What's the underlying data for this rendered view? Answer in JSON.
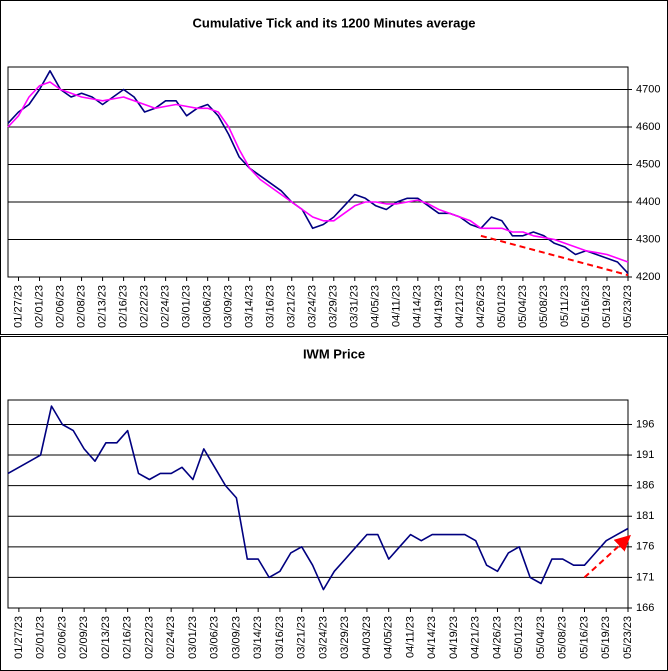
{
  "chart_data": [
    {
      "type": "line",
      "title": "Cumulative Tick and its 1200 Minutes average",
      "categories": [
        null,
        "01/27/23",
        null,
        "02/01/23",
        null,
        "02/06/23",
        null,
        "02/08/23",
        null,
        "02/13/23",
        null,
        "02/16/23",
        null,
        "02/22/23",
        null,
        "02/24/23",
        null,
        "03/01/23",
        null,
        "03/06/23",
        null,
        "03/09/23",
        null,
        "03/14/23",
        null,
        "03/16/23",
        null,
        "03/21/23",
        null,
        "03/24/23",
        null,
        "03/29/23",
        null,
        "03/31/23",
        null,
        "04/05/23",
        null,
        "04/11/23",
        null,
        "04/14/23",
        null,
        "04/19/23",
        null,
        "04/21/23",
        null,
        "04/26/23",
        null,
        "05/01/23",
        null,
        "05/04/23",
        null,
        "05/08/23",
        null,
        "05/11/23",
        null,
        "05/16/23",
        null,
        "05/19/23",
        null,
        "05/23/23"
      ],
      "series": [
        {
          "color": "#000080",
          "values": [
            4610,
            4640,
            4660,
            4700,
            4750,
            4700,
            4680,
            4690,
            4680,
            4660,
            4680,
            4700,
            4680,
            4640,
            4650,
            4670,
            4670,
            4630,
            4650,
            4660,
            4630,
            4580,
            4520,
            4490,
            4470,
            4450,
            4430,
            4400,
            4380,
            4330,
            4340,
            4360,
            4390,
            4420,
            4410,
            4390,
            4380,
            4400,
            4410,
            4410,
            4390,
            4370,
            4370,
            4360,
            4340,
            4330,
            4360,
            4350,
            4310,
            4310,
            4320,
            4310,
            4290,
            4280,
            4260,
            4270,
            4260,
            4250,
            4240,
            4210
          ]
        },
        {
          "color": "#ff00ff",
          "values": [
            4600,
            4630,
            4680,
            4710,
            4720,
            4700,
            4690,
            4680,
            4675,
            4670,
            4675,
            4680,
            4670,
            4660,
            4650,
            4655,
            4660,
            4655,
            4650,
            4650,
            4640,
            4600,
            4540,
            4490,
            4460,
            4440,
            4420,
            4400,
            4380,
            4360,
            4350,
            4350,
            4370,
            4390,
            4400,
            4400,
            4395,
            4395,
            4400,
            4405,
            4395,
            4380,
            4370,
            4360,
            4350,
            4330,
            4330,
            4330,
            4320,
            4320,
            4310,
            4305,
            4300,
            4290,
            4280,
            4270,
            4265,
            4260,
            4250,
            4240
          ]
        },
        {
          "color": "#ff0000",
          "style": "dashed",
          "values": [
            null,
            null,
            null,
            null,
            null,
            null,
            null,
            null,
            null,
            null,
            null,
            null,
            null,
            null,
            null,
            null,
            null,
            null,
            null,
            null,
            null,
            null,
            null,
            null,
            null,
            null,
            null,
            null,
            null,
            null,
            null,
            null,
            null,
            null,
            null,
            null,
            null,
            null,
            null,
            null,
            null,
            null,
            null,
            null,
            null,
            4310,
            null,
            null,
            null,
            null,
            null,
            null,
            null,
            null,
            null,
            null,
            null,
            null,
            null,
            4205
          ]
        }
      ],
      "ylim": [
        4200,
        4760
      ],
      "yticks": [
        4200,
        4300,
        4400,
        4500,
        4600,
        4700
      ],
      "grid": true
    },
    {
      "type": "line",
      "title": "IWM Price",
      "categories": [
        null,
        "01/27/23",
        null,
        "02/01/23",
        null,
        "02/06/23",
        null,
        "02/09/23",
        null,
        "02/13/23",
        null,
        "02/16/23",
        null,
        "02/22/23",
        null,
        "02/24/23",
        null,
        "03/01/23",
        null,
        "03/06/23",
        null,
        "03/09/23",
        null,
        "03/14/23",
        null,
        "03/16/23",
        null,
        "03/21/23",
        null,
        "03/24/23",
        null,
        "03/29/23",
        null,
        "04/03/23",
        null,
        "04/05/23",
        null,
        "04/11/23",
        null,
        "04/14/23",
        null,
        "04/19/23",
        null,
        "04/21/23",
        null,
        "04/26/23",
        null,
        "05/01/23",
        null,
        "05/04/23",
        null,
        "05/08/23",
        null,
        "05/16/23",
        null,
        "05/19/23",
        null,
        "05/23/23"
      ],
      "series": [
        {
          "color": "#000080",
          "values": [
            188,
            189,
            190,
            191,
            199,
            196,
            195,
            192,
            190,
            193,
            193,
            195,
            188,
            187,
            188,
            188,
            189,
            187,
            192,
            189,
            186,
            184,
            174,
            174,
            171,
            172,
            175,
            176,
            173,
            169,
            172,
            174,
            176,
            178,
            178,
            174,
            176,
            178,
            177,
            178,
            178,
            178,
            178,
            177,
            173,
            172,
            175,
            176,
            171,
            170,
            174,
            174,
            173,
            173,
            175,
            177,
            178,
            179
          ]
        },
        {
          "color": "#ff0000",
          "style": "arrow",
          "values": [
            null,
            null,
            null,
            null,
            null,
            null,
            null,
            null,
            null,
            null,
            null,
            null,
            null,
            null,
            null,
            null,
            null,
            null,
            null,
            null,
            null,
            null,
            null,
            null,
            null,
            null,
            null,
            null,
            null,
            null,
            null,
            null,
            null,
            null,
            null,
            null,
            null,
            null,
            null,
            null,
            null,
            null,
            null,
            null,
            null,
            null,
            null,
            null,
            null,
            null,
            null,
            null,
            null,
            171,
            null,
            null,
            null,
            177.5
          ]
        }
      ],
      "ylim": [
        166,
        200
      ],
      "yticks": [
        166,
        171,
        176,
        181,
        186,
        191,
        196
      ],
      "grid": true
    }
  ]
}
